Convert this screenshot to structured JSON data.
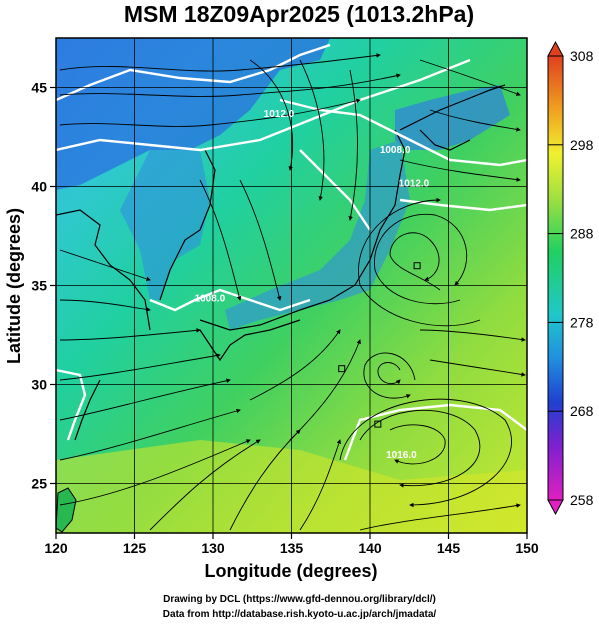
{
  "title": "MSM 18Z09Apr2025 (1013.2hPa)",
  "x_axis": {
    "label": "Longitude (degrees)",
    "range": [
      120,
      150
    ],
    "ticks": [
      120,
      125,
      130,
      135,
      140,
      145,
      150
    ],
    "tick_labels": [
      "120",
      "125",
      "130",
      "135",
      "140",
      "145",
      "150"
    ]
  },
  "y_axis": {
    "label": "Latitude  (degrees)",
    "range": [
      22.5,
      47.5
    ],
    "ticks": [
      25,
      30,
      35,
      40,
      45
    ],
    "tick_labels": [
      "25",
      "30",
      "35",
      "40",
      "45"
    ]
  },
  "colorbar": {
    "range": [
      258,
      308
    ],
    "ticks": [
      258,
      268,
      278,
      288,
      298,
      308
    ],
    "tick_labels": [
      "258",
      "268",
      "278",
      "288",
      "298",
      "308"
    ],
    "colors": [
      "#e020c0",
      "#8020d0",
      "#2040d0",
      "#2090e0",
      "#20c8c8",
      "#20d060",
      "#a0e040",
      "#f0f030",
      "#f0a020",
      "#e04020"
    ]
  },
  "contour_labels": [
    {
      "text": "1012.0",
      "lon": 134.2,
      "lat": 43.5
    },
    {
      "text": "1012.0",
      "lon": 142.8,
      "lat": 40.0
    },
    {
      "text": "1008.0",
      "lon": 141.6,
      "lat": 41.7
    },
    {
      "text": "1008.0",
      "lon": 129.8,
      "lat": 34.2
    },
    {
      "text": "1016.0",
      "lon": 142.0,
      "lat": 26.3
    }
  ],
  "chart_data": {
    "type": "heatmap",
    "description_fields": "temperature field (K) with pressure contours and wind streamlines",
    "x_range": [
      120,
      150
    ],
    "y_range": [
      22.5,
      47.5
    ],
    "value_range": [
      258,
      308
    ],
    "lows": [
      {
        "lon": 143.0,
        "lat": 36.0
      },
      {
        "lon": 138.2,
        "lat": 30.8
      }
    ],
    "high_box": {
      "lon": 140.5,
      "lat": 28.0
    }
  },
  "credits": {
    "line1": "Drawing by DCL (https://www.gfd-dennou.org/library/dcl/)",
    "line2": "Data from http://database.rish.kyoto-u.ac.jp/arch/jmadata/"
  }
}
